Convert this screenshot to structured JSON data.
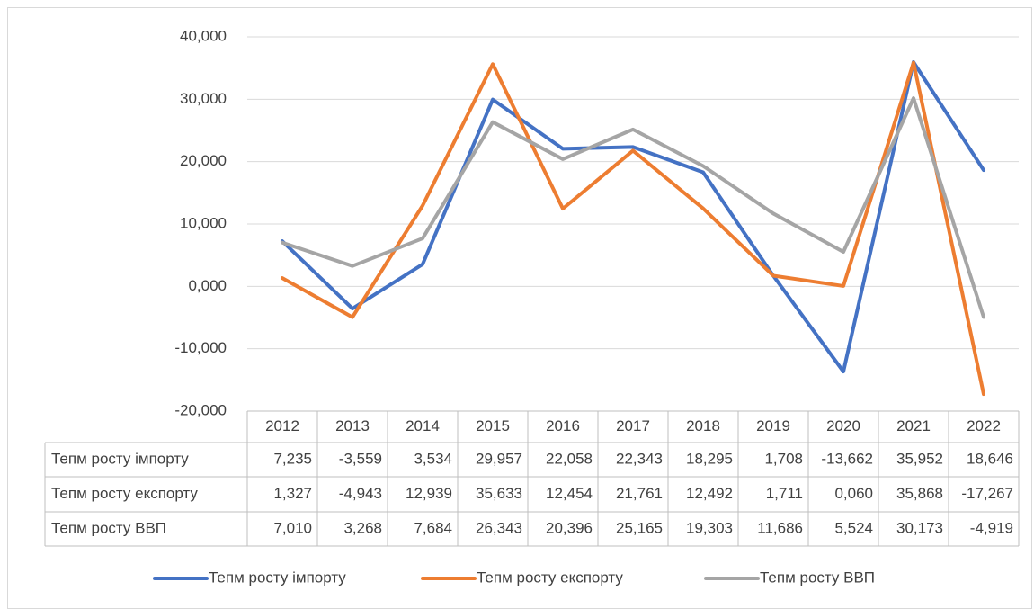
{
  "chart_data": {
    "type": "line",
    "categories": [
      "2012",
      "2013",
      "2014",
      "2015",
      "2016",
      "2017",
      "2018",
      "2019",
      "2020",
      "2021",
      "2022"
    ],
    "ylim": [
      -20,
      40
    ],
    "yticks": [
      {
        "value": -20,
        "label": "-20,000"
      },
      {
        "value": -10,
        "label": "-10,000"
      },
      {
        "value": 0,
        "label": "0,000"
      },
      {
        "value": 10,
        "label": "10,000"
      },
      {
        "value": 20,
        "label": "20,000"
      },
      {
        "value": 30,
        "label": "30,000"
      },
      {
        "value": 40,
        "label": "40,000"
      }
    ],
    "grid": true,
    "legend": "bottom",
    "series": [
      {
        "name": "Тепм росту імпорту",
        "color": "#4472c4",
        "values": [
          7.235,
          -3.559,
          3.534,
          29.957,
          22.058,
          22.343,
          18.295,
          1.708,
          -13.662,
          35.952,
          18.646
        ],
        "value_labels": [
          "7,235",
          "-3,559",
          "3,534",
          "29,957",
          "22,058",
          "22,343",
          "18,295",
          "1,708",
          "-13,662",
          "35,952",
          "18,646"
        ]
      },
      {
        "name": "Тепм росту експорту",
        "color": "#ed7d31",
        "values": [
          1.327,
          -4.943,
          12.939,
          35.633,
          12.454,
          21.761,
          12.492,
          1.711,
          0.06,
          35.868,
          -17.267
        ],
        "value_labels": [
          "1,327",
          "-4,943",
          "12,939",
          "35,633",
          "12,454",
          "21,761",
          "12,492",
          "1,711",
          "0,060",
          "35,868",
          "-17,267"
        ]
      },
      {
        "name": "Тепм росту ВВП",
        "color": "#a5a5a5",
        "values": [
          7.01,
          3.268,
          7.684,
          26.343,
          20.396,
          25.165,
          19.303,
          11.686,
          5.524,
          30.173,
          -4.919
        ],
        "value_labels": [
          "7,010",
          "3,268",
          "7,684",
          "26,343",
          "20,396",
          "25,165",
          "19,303",
          "11,686",
          "5,524",
          "30,173",
          "-4,919"
        ]
      }
    ]
  }
}
